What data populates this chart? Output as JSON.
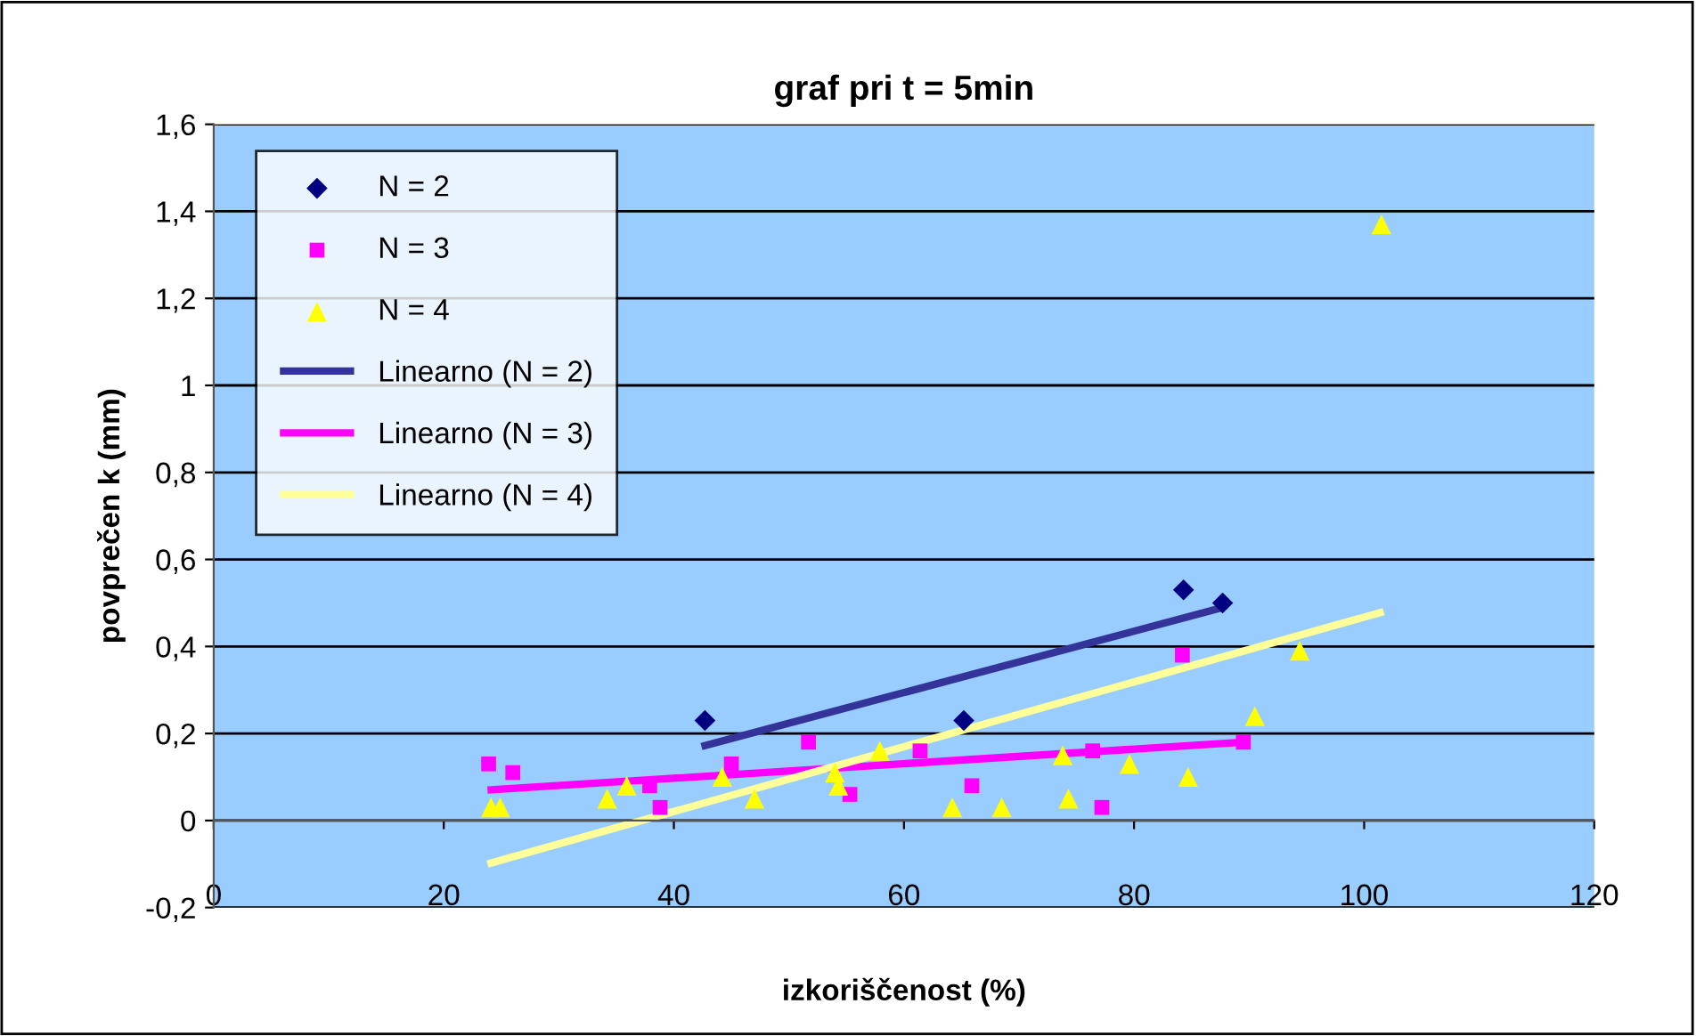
{
  "chart_data": {
    "type": "scatter",
    "title": "graf pri t = 5min",
    "xlabel": "izkoriščenost (%)",
    "ylabel": "povprečen k (mm)",
    "xlim": [
      0,
      120
    ],
    "xticks": [
      0,
      20,
      40,
      60,
      80,
      100,
      120
    ],
    "ylim": [
      -0.2,
      1.6
    ],
    "yticks": [
      {
        "value": -0.2,
        "label": "-0,2"
      },
      {
        "value": 0,
        "label": "0"
      },
      {
        "value": 0.2,
        "label": "0,2"
      },
      {
        "value": 0.4,
        "label": "0,4"
      },
      {
        "value": 0.6,
        "label": "0,6"
      },
      {
        "value": 0.8,
        "label": "0,8"
      },
      {
        "value": 1,
        "label": "1"
      },
      {
        "value": 1.2,
        "label": "1,2"
      },
      {
        "value": 1.4,
        "label": "1,4"
      },
      {
        "value": 1.6,
        "label": "1,6"
      }
    ],
    "grid": "y",
    "legend": "top left",
    "series": [
      {
        "name": "N = 2",
        "marker": "diamond",
        "color": "#000080",
        "x": [
          42.7,
          65.2,
          84.3,
          87.7
        ],
        "values": [
          0.23,
          0.23,
          0.53,
          0.5
        ]
      },
      {
        "name": "N = 3",
        "marker": "square",
        "color": "#ff00ff",
        "x": [
          23.9,
          26.0,
          37.9,
          38.8,
          45.0,
          51.7,
          55.3,
          61.4,
          65.9,
          76.4,
          77.2,
          84.2,
          89.5
        ],
        "values": [
          0.13,
          0.11,
          0.08,
          0.03,
          0.13,
          0.18,
          0.06,
          0.16,
          0.08,
          0.16,
          0.03,
          0.38,
          0.18
        ]
      },
      {
        "name": "N = 4",
        "marker": "triangle",
        "color": "#ffff00",
        "x": [
          24.1,
          24.9,
          34.2,
          35.9,
          44.2,
          47.0,
          54.0,
          54.3,
          57.9,
          64.2,
          68.5,
          73.8,
          74.3,
          79.6,
          84.7,
          90.5,
          94.4,
          101.5
        ],
        "values": [
          0.03,
          0.03,
          0.05,
          0.08,
          0.1,
          0.05,
          0.11,
          0.08,
          0.16,
          0.03,
          0.03,
          0.15,
          0.05,
          0.13,
          0.1,
          0.24,
          0.39,
          1.37
        ]
      },
      {
        "name": "Linearno (N = 2)",
        "type": "line",
        "color": "#333399",
        "x": [
          42.4,
          87.8
        ],
        "values": [
          0.17,
          0.49
        ]
      },
      {
        "name": "Linearno (N = 3)",
        "type": "line",
        "color": "#ff00ff",
        "x": [
          23.8,
          89.5
        ],
        "values": [
          0.07,
          0.18
        ]
      },
      {
        "name": "Linearno (N = 4)",
        "type": "line",
        "color": "#ffff99",
        "x": [
          23.8,
          101.7
        ],
        "values": [
          -0.1,
          0.48
        ]
      }
    ]
  }
}
